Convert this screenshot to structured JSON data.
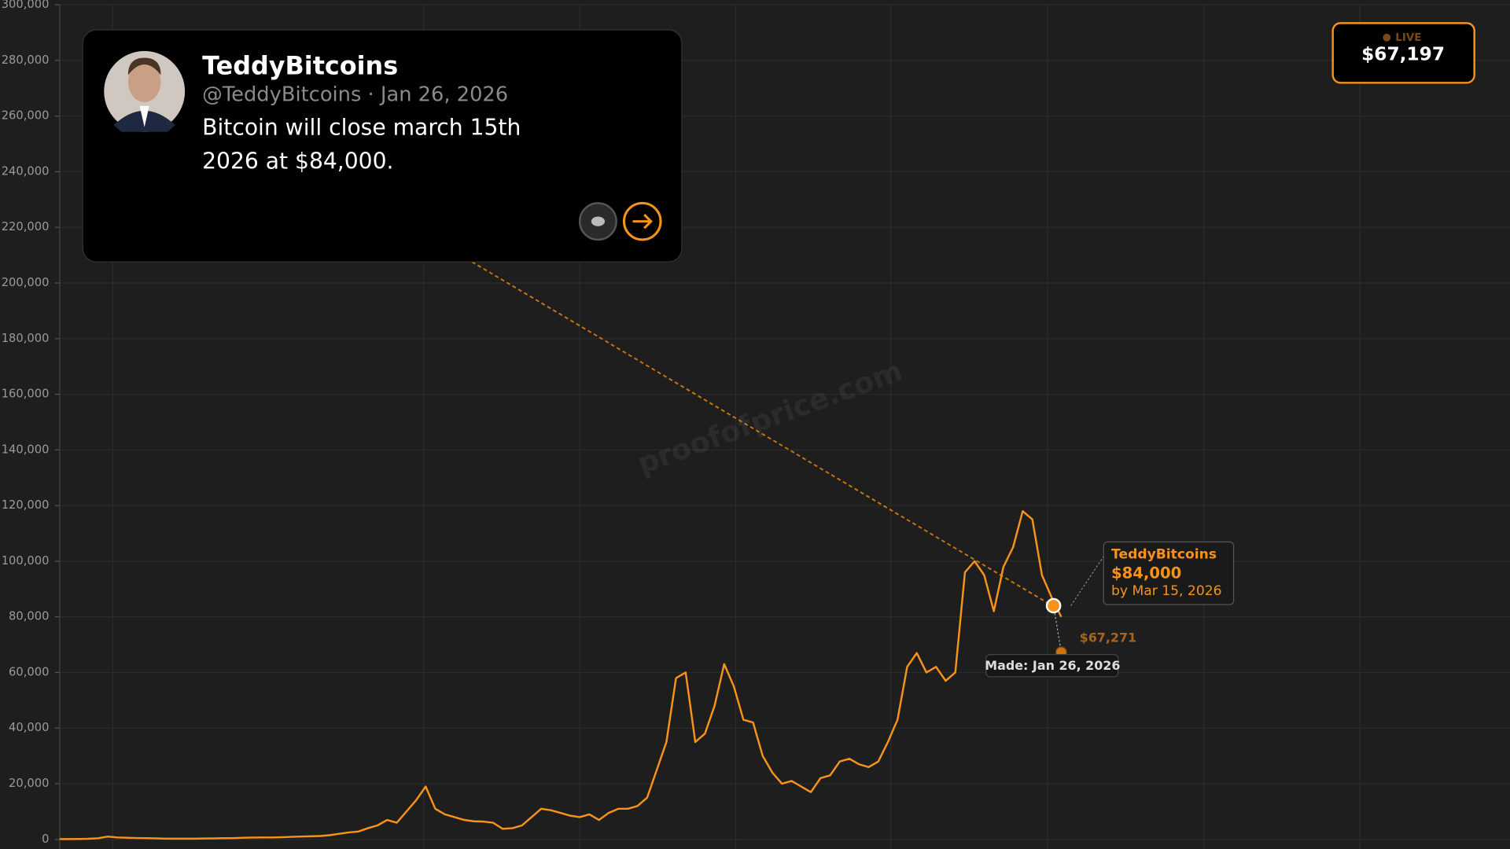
{
  "tweet": {
    "name": "TeddyBitcoins",
    "handle_line": "@TeddyBitcoins · Jan 26, 2026",
    "text": "Bitcoin will close march 15th 2026 at $84,000."
  },
  "live": {
    "label": "LIVE",
    "price": "$67,197"
  },
  "watermark": "proofofprice.com",
  "chart_data": {
    "type": "line",
    "color": "#f7931a",
    "grid": true,
    "ylim": [
      0,
      300000
    ],
    "yticks": [
      0,
      {
        "value": 20000,
        "label": "20,000"
      },
      {
        "value": 40000,
        "label": "40,000"
      },
      {
        "value": 60000,
        "label": "60,000"
      },
      {
        "value": 80000,
        "label": "80,000"
      },
      {
        "value": 100000,
        "label": "100,000"
      },
      {
        "value": 120000,
        "label": "120,000"
      },
      {
        "value": 140000,
        "label": "140,000"
      },
      {
        "value": 160000,
        "label": "160,000"
      },
      {
        "value": 180000,
        "label": "180,000"
      },
      {
        "value": 200000,
        "label": "200,000"
      },
      {
        "value": 220000,
        "label": "220,000"
      },
      {
        "value": 240000,
        "label": "240,000"
      },
      {
        "value": 260000,
        "label": "260,000"
      },
      {
        "value": 280000,
        "label": "280,000"
      },
      {
        "value": 300000,
        "label": "300,000"
      }
    ],
    "values": [
      100,
      120,
      150,
      200,
      400,
      1000,
      700,
      600,
      500,
      450,
      350,
      250,
      250,
      230,
      250,
      300,
      350,
      420,
      450,
      600,
      650,
      700,
      700,
      750,
      900,
      1000,
      1100,
      1200,
      1500,
      2000,
      2500,
      2800,
      4000,
      5000,
      7000,
      6000,
      10000,
      14000,
      19000,
      11000,
      9000,
      8000,
      7000,
      6500,
      6400,
      6000,
      3800,
      4000,
      5000,
      8000,
      11000,
      10500,
      9500,
      8500,
      8000,
      9000,
      7000,
      9500,
      11000,
      11000,
      12000,
      15000,
      25000,
      35000,
      58000,
      60000,
      35000,
      38000,
      48000,
      63000,
      55000,
      43000,
      42000,
      30000,
      24000,
      20000,
      21000,
      19000,
      17000,
      22000,
      23000,
      28000,
      29000,
      27000,
      26000,
      28000,
      35000,
      43000,
      62000,
      67000,
      60000,
      62000,
      57000,
      60000,
      96000,
      100000,
      95000,
      82000,
      98000,
      105000,
      118000,
      115000,
      95000,
      87000,
      80000
    ],
    "prediction": {
      "name": "TeddyBitcoins",
      "value": 84000,
      "value_label": "$84,000",
      "deadline": "by Mar 15, 2026"
    },
    "current": {
      "value": 67271,
      "value_label": "$67,271",
      "made": "Made: Jan 26, 2026"
    }
  }
}
